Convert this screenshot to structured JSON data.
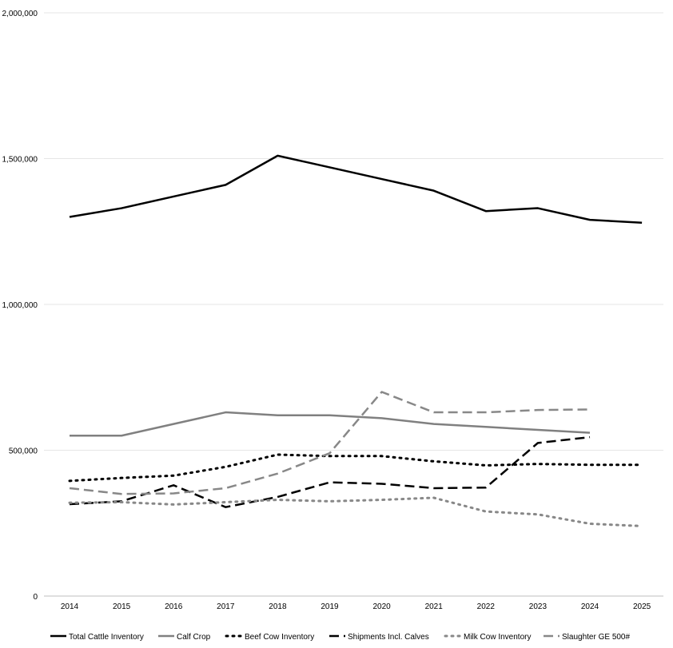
{
  "chart_data": {
    "type": "line",
    "title": "",
    "xlabel": "",
    "ylabel": "",
    "ylim": [
      0,
      2000000
    ],
    "y_ticks": [
      0,
      500000,
      1000000,
      1500000,
      2000000
    ],
    "y_tick_labels": [
      "0",
      "500,000",
      "1,000,000",
      "1,500,000",
      "2,000,000"
    ],
    "categories": [
      "2014",
      "2015",
      "2016",
      "2017",
      "2018",
      "2019",
      "2020",
      "2021",
      "2022",
      "2023",
      "2024",
      "2025"
    ],
    "grid": "horizontal",
    "legend_position": "bottom",
    "series": [
      {
        "name": "Total Cattle Inventory",
        "color": "#000000",
        "style": "solid",
        "values": [
          1300000,
          1330000,
          1370000,
          1410000,
          1510000,
          1470000,
          1430000,
          1390000,
          1320000,
          1330000,
          1290000,
          1280000
        ]
      },
      {
        "name": "Calf Crop",
        "color": "#808080",
        "style": "solid",
        "values": [
          550000,
          550000,
          590000,
          630000,
          620000,
          620000,
          610000,
          590000,
          580000,
          570000,
          560000,
          null
        ]
      },
      {
        "name": "Beef Cow Inventory",
        "color": "#000000",
        "style": "dotted",
        "values": [
          395000,
          405000,
          413000,
          443000,
          485000,
          480000,
          480000,
          462000,
          448000,
          453000,
          450000,
          450000
        ]
      },
      {
        "name": "Shipments Incl. Calves",
        "color": "#000000",
        "style": "dashed",
        "values": [
          315000,
          325000,
          380000,
          305000,
          340000,
          390000,
          385000,
          370000,
          372000,
          525000,
          545000,
          null
        ]
      },
      {
        "name": "Milk Cow Inventory",
        "color": "#888888",
        "style": "dotted",
        "values": [
          320000,
          322000,
          314000,
          322000,
          330000,
          325000,
          330000,
          337000,
          290000,
          280000,
          248000,
          240000
        ]
      },
      {
        "name": "Slaughter GE 500#",
        "color": "#888888",
        "style": "dashed",
        "values": [
          370000,
          350000,
          352000,
          370000,
          420000,
          490000,
          700000,
          630000,
          630000,
          638000,
          640000,
          null
        ]
      }
    ]
  }
}
